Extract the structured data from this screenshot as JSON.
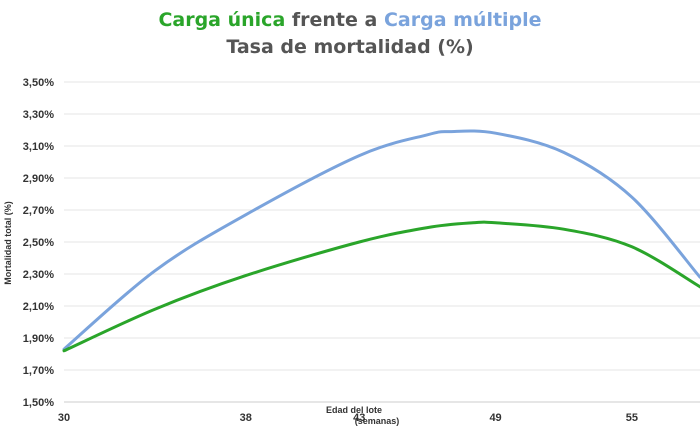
{
  "colors": {
    "single": "#2aa52a",
    "multiple": "#7aa3dc",
    "text": "#555555",
    "grid": "#e6e6e6"
  },
  "chart_data": {
    "type": "line",
    "title_parts": [
      {
        "text": "Carga única",
        "color": "#2aa52a"
      },
      {
        "text": " frente a ",
        "color": "#555555"
      },
      {
        "text": "Carga múltiple",
        "color": "#7aa3dc"
      }
    ],
    "subtitle": "Tasa de mortalidad (%)",
    "xlabel": [
      "Edad del lote",
      "(semanas)"
    ],
    "ylabel": "Mortalidad total (%)",
    "x_ticks": [
      30,
      38,
      43,
      49,
      55
    ],
    "y_ticks": [
      "1,50%",
      "1,70%",
      "1,90%",
      "2,10%",
      "2,30%",
      "2,50%",
      "2,70%",
      "2,90%",
      "3,10%",
      "3,30%",
      "3,50%"
    ],
    "ylim": [
      1.5,
      3.5
    ],
    "grid": true,
    "series": [
      {
        "key": "multiple",
        "color": "#7aa3dc",
        "points": [
          [
            30,
            1.83
          ],
          [
            34,
            2.32
          ],
          [
            38,
            2.67
          ],
          [
            43,
            3.04
          ],
          [
            46,
            3.17
          ],
          [
            47,
            3.19
          ],
          [
            49,
            3.18
          ],
          [
            52,
            3.06
          ],
          [
            55,
            2.78
          ],
          [
            58,
            2.28
          ]
        ]
      },
      {
        "key": "single",
        "color": "#2aa52a",
        "points": [
          [
            30,
            1.82
          ],
          [
            34,
            2.08
          ],
          [
            38,
            2.29
          ],
          [
            43,
            2.5
          ],
          [
            46,
            2.59
          ],
          [
            48,
            2.62
          ],
          [
            49,
            2.62
          ],
          [
            52,
            2.58
          ],
          [
            55,
            2.47
          ],
          [
            58,
            2.22
          ]
        ]
      }
    ]
  }
}
